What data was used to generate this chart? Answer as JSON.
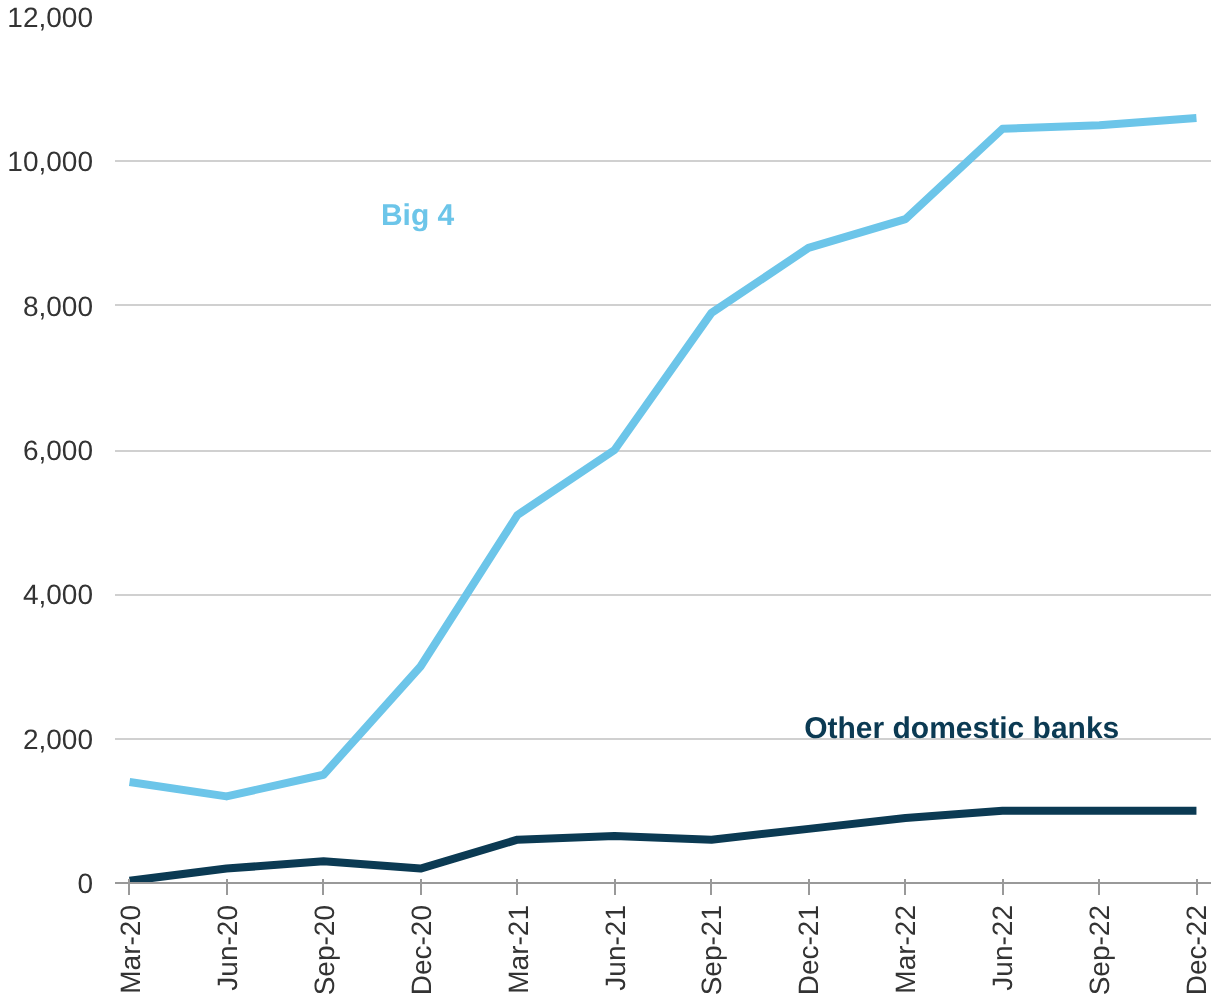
{
  "chart_data": {
    "type": "line",
    "categories": [
      "Mar-20",
      "Jun-20",
      "Sep-20",
      "Dec-20",
      "Mar-21",
      "Jun-21",
      "Sep-21",
      "Dec-21",
      "Mar-22",
      "Jun-22",
      "Sep-22",
      "Dec-22"
    ],
    "series": [
      {
        "name": "Big 4",
        "color": "#6cc5e9",
        "values": [
          1400,
          1200,
          1500,
          3000,
          5100,
          6000,
          7900,
          8800,
          9200,
          10450,
          10500,
          10600
        ]
      },
      {
        "name": "Other domestic banks",
        "color": "#0b3a53",
        "values": [
          30,
          200,
          300,
          200,
          600,
          650,
          600,
          750,
          900,
          1000,
          1000,
          1000
        ]
      }
    ],
    "ylim": [
      0,
      12000
    ],
    "yticks": [
      {
        "value": 0,
        "label": "0"
      },
      {
        "value": 2000,
        "label": "2,000"
      },
      {
        "value": 4000,
        "label": "4,000"
      },
      {
        "value": 6000,
        "label": "6,000"
      },
      {
        "value": 8000,
        "label": "8,000"
      },
      {
        "value": 10000,
        "label": "10,000"
      },
      {
        "value": 12000,
        "label": "12,000"
      }
    ],
    "grid": "y",
    "marker": "none",
    "line_style": "solid"
  }
}
